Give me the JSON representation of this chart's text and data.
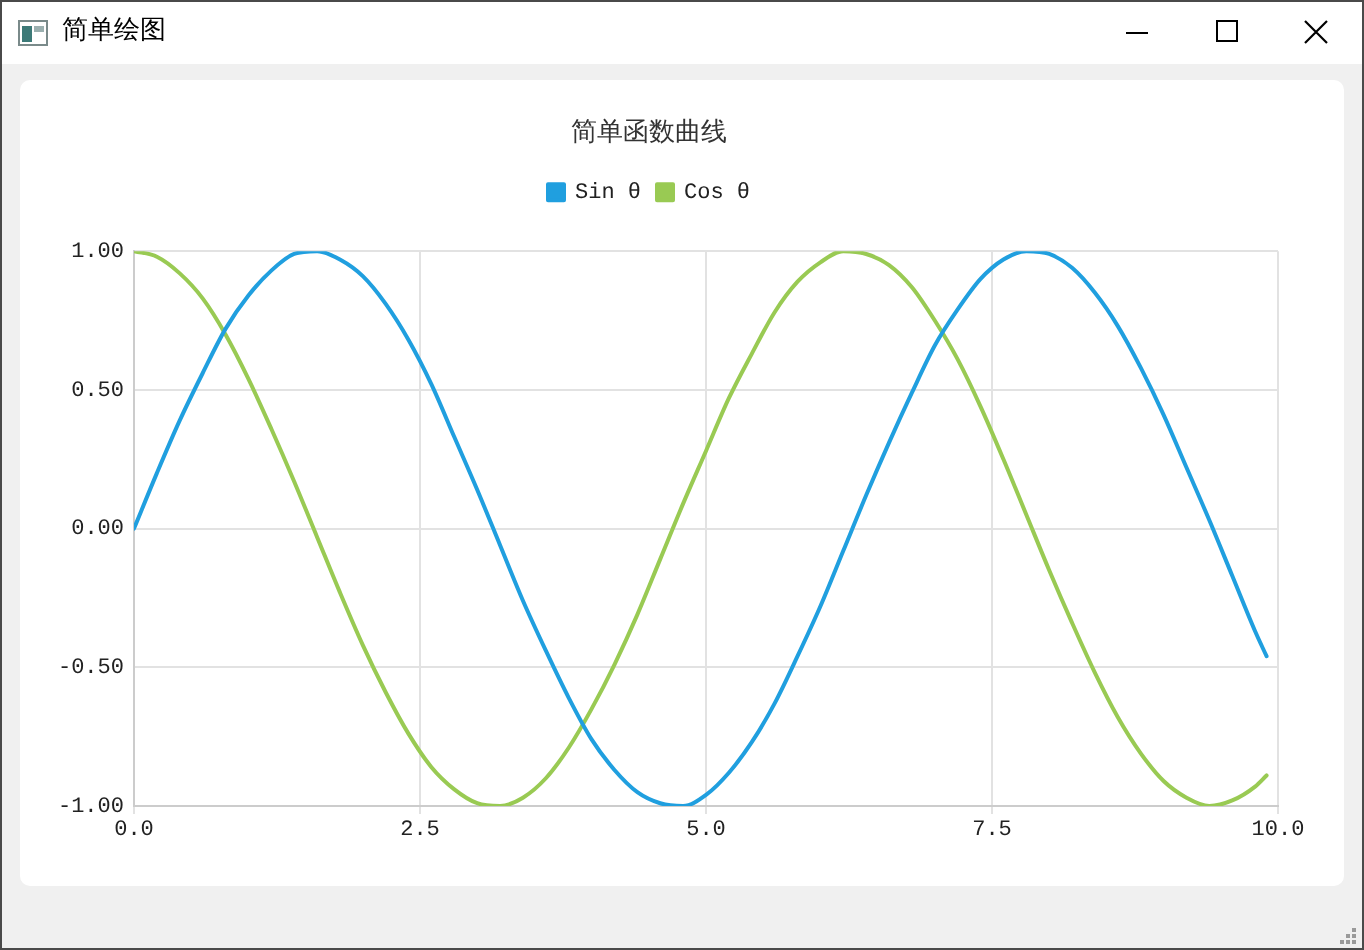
{
  "chart_data": {
    "type": "line",
    "title": "简单函数曲线",
    "annotations": [
      "简单绘图"
    ],
    "x": [
      0,
      0.2,
      0.4,
      0.6,
      0.8,
      1.0,
      1.2,
      1.4,
      1.6,
      1.8,
      2.0,
      2.2,
      2.4,
      2.6,
      2.8,
      3.0,
      3.2,
      3.4,
      3.6,
      3.8,
      4.0,
      4.2,
      4.4,
      4.6,
      4.8,
      5.0,
      5.2,
      5.4,
      5.6,
      5.8,
      6.0,
      6.2,
      6.4,
      6.6,
      6.8,
      7.0,
      7.2,
      7.4,
      7.6,
      7.8,
      8.0,
      8.2,
      8.4,
      8.6,
      8.8,
      9.0,
      9.2,
      9.4,
      9.6,
      9.8,
      9.9
    ],
    "series": [
      {
        "name": "Sin θ",
        "color": "#209fdf",
        "values": [
          0.0,
          0.2,
          0.39,
          0.56,
          0.72,
          0.84,
          0.93,
          0.99,
          1.0,
          0.97,
          0.91,
          0.81,
          0.68,
          0.52,
          0.33,
          0.14,
          -0.06,
          -0.26,
          -0.44,
          -0.61,
          -0.76,
          -0.87,
          -0.95,
          -0.99,
          -1.0,
          -0.96,
          -0.88,
          -0.77,
          -0.63,
          -0.46,
          -0.28,
          -0.08,
          0.12,
          0.31,
          0.49,
          0.66,
          0.79,
          0.9,
          0.97,
          1.0,
          0.99,
          0.94,
          0.85,
          0.73,
          0.58,
          0.41,
          0.22,
          0.03,
          -0.17,
          -0.37,
          -0.46
        ]
      },
      {
        "name": "Cos θ",
        "color": "#99ca53",
        "values": [
          1.0,
          0.98,
          0.92,
          0.83,
          0.7,
          0.54,
          0.36,
          0.17,
          -0.03,
          -0.23,
          -0.42,
          -0.59,
          -0.74,
          -0.86,
          -0.94,
          -0.99,
          -1.0,
          -0.97,
          -0.9,
          -0.79,
          -0.65,
          -0.49,
          -0.31,
          -0.11,
          0.09,
          0.28,
          0.47,
          0.63,
          0.78,
          0.89,
          0.96,
          1.0,
          0.99,
          0.95,
          0.87,
          0.75,
          0.61,
          0.44,
          0.25,
          0.05,
          -0.15,
          -0.34,
          -0.52,
          -0.68,
          -0.81,
          -0.91,
          -0.97,
          -1.0,
          -0.98,
          -0.93,
          -0.89
        ]
      }
    ],
    "xlim": [
      0,
      10
    ],
    "xticks": [
      {
        "value": 0,
        "label": "0.0"
      },
      2.5,
      {
        "value": 5,
        "label": "5.0"
      },
      7.5,
      {
        "value": 10,
        "label": "10.0"
      }
    ],
    "ylim": [
      -1,
      1
    ],
    "yticks": [
      {
        "value": -1,
        "label": "-1.00"
      },
      {
        "value": -0.5,
        "label": "-0.50"
      },
      {
        "value": 0,
        "label": "0.00"
      },
      {
        "value": 0.5,
        "label": "0.50"
      },
      {
        "value": 1,
        "label": "1.00"
      }
    ],
    "grid": true,
    "legend": "top"
  }
}
